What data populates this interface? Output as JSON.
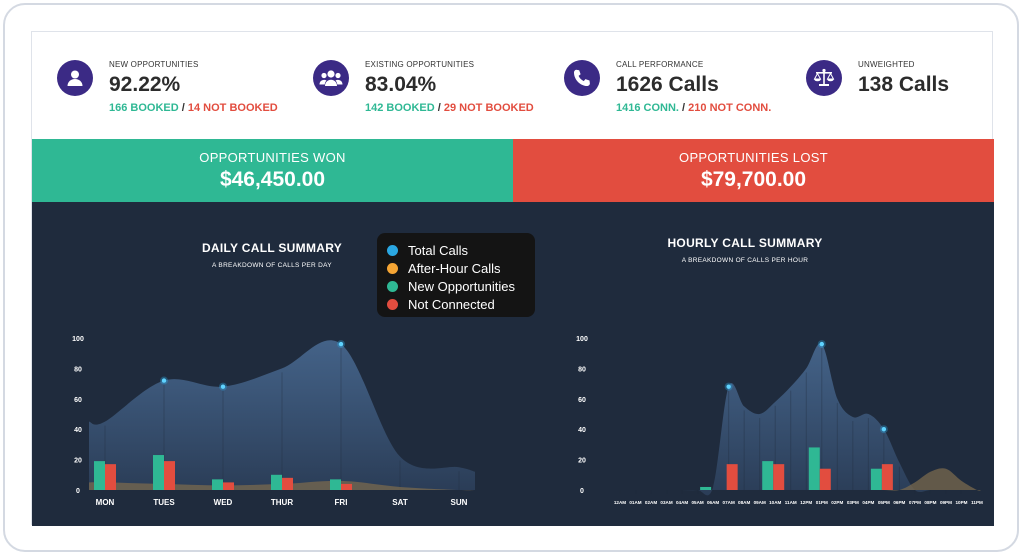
{
  "stats": [
    {
      "label": "NEW OPPORTUNITIES",
      "value": "92.22%",
      "good": "166 BOOKED",
      "sep": " / ",
      "bad": "14 NOT BOOKED",
      "icon": "user-icon"
    },
    {
      "label": "EXISTING OPPORTUNITIES",
      "value": "83.04%",
      "good": "142 BOOKED",
      "sep": " / ",
      "bad": "29 NOT BOOKED",
      "icon": "users-group-icon"
    },
    {
      "label": "CALL PERFORMANCE",
      "value": "1626 Calls",
      "good": "1416 CONN.",
      "sep": " / ",
      "bad": "210 NOT CONN.",
      "icon": "phone-icon"
    },
    {
      "label": "UNWEIGHTED",
      "value": "138 Calls",
      "icon": "scale-icon"
    }
  ],
  "banners": {
    "won": {
      "title": "OPPORTUNITIES WON",
      "amount": "$46,450.00"
    },
    "lost": {
      "title": "OPPORTUNITIES LOST",
      "amount": "$79,700.00"
    }
  },
  "legend": [
    {
      "label": "Total Calls",
      "color": "#2aa7e2"
    },
    {
      "label": "After-Hour Calls",
      "color": "#f5a534"
    },
    {
      "label": "New Opportunities",
      "color": "#2fb894"
    },
    {
      "label": "Not Connected",
      "color": "#e24d3f"
    }
  ],
  "colors": {
    "won": "#2fb894",
    "lost": "#e24d3f",
    "dark": "#1f2b3d",
    "icon": "#3b2a85"
  },
  "chart_data": [
    {
      "type": "bar",
      "title": "DAILY CALL SUMMARY",
      "subtitle": "A BREAKDOWN OF CALLS PER DAY",
      "categories": [
        "MON",
        "TUES",
        "WED",
        "THUR",
        "FRI",
        "SAT",
        "SUN"
      ],
      "ylim": [
        0,
        100
      ],
      "yticks": [
        0,
        20,
        40,
        60,
        80,
        100
      ],
      "series": [
        {
          "name": "Total Calls",
          "type": "area",
          "values": [
            45,
            72,
            68,
            80,
            96,
            22,
            15
          ],
          "markers": [
            1,
            2,
            4
          ]
        },
        {
          "name": "After-Hour Calls",
          "type": "area",
          "values": [
            5,
            4,
            3,
            4,
            6,
            2,
            0
          ]
        },
        {
          "name": "New Opportunities",
          "type": "bar",
          "values": [
            19,
            23,
            7,
            10,
            7,
            0,
            0
          ]
        },
        {
          "name": "Not Connected",
          "type": "bar",
          "values": [
            17,
            19,
            5,
            8,
            4,
            0,
            0
          ]
        }
      ]
    },
    {
      "type": "bar",
      "title": "HOURLY CALL SUMMARY",
      "subtitle": "A BREAKDOWN OF CALLS PER HOUR",
      "categories": [
        "12AM",
        "01AM",
        "02AM",
        "03AM",
        "04AM",
        "05AM",
        "06AM",
        "07AM",
        "08AM",
        "09AM",
        "10AM",
        "11AM",
        "12PM",
        "01PM",
        "02PM",
        "03PM",
        "04PM",
        "05PM",
        "06PM",
        "07PM",
        "08PM",
        "09PM",
        "10PM",
        "11PM"
      ],
      "ylim": [
        0,
        100
      ],
      "yticks": [
        0,
        20,
        40,
        60,
        80,
        100
      ],
      "series": [
        {
          "name": "Total Calls",
          "type": "area",
          "values": [
            0,
            0,
            0,
            0,
            0,
            0,
            2,
            68,
            55,
            50,
            58,
            68,
            80,
            96,
            60,
            48,
            50,
            40,
            18,
            0,
            0,
            0,
            0,
            0
          ],
          "markers": [
            7,
            13,
            17
          ]
        },
        {
          "name": "After-Hour Calls",
          "type": "area",
          "values": [
            0,
            0,
            0,
            0,
            0,
            0,
            0,
            0,
            0,
            0,
            0,
            0,
            0,
            0,
            0,
            0,
            0,
            0,
            0,
            5,
            12,
            14,
            6,
            0
          ]
        },
        {
          "name": "New Opportunities",
          "type": "bar",
          "values": [
            0,
            0,
            0,
            0,
            0,
            0,
            2,
            0,
            0,
            0,
            19,
            0,
            0,
            28,
            0,
            0,
            0,
            14,
            0,
            0,
            0,
            0,
            0,
            0
          ]
        },
        {
          "name": "Not Connected",
          "type": "bar",
          "values": [
            0,
            0,
            0,
            0,
            0,
            0,
            0,
            17,
            0,
            0,
            17,
            0,
            0,
            14,
            0,
            0,
            0,
            17,
            0,
            0,
            0,
            0,
            0,
            0
          ]
        }
      ]
    }
  ]
}
